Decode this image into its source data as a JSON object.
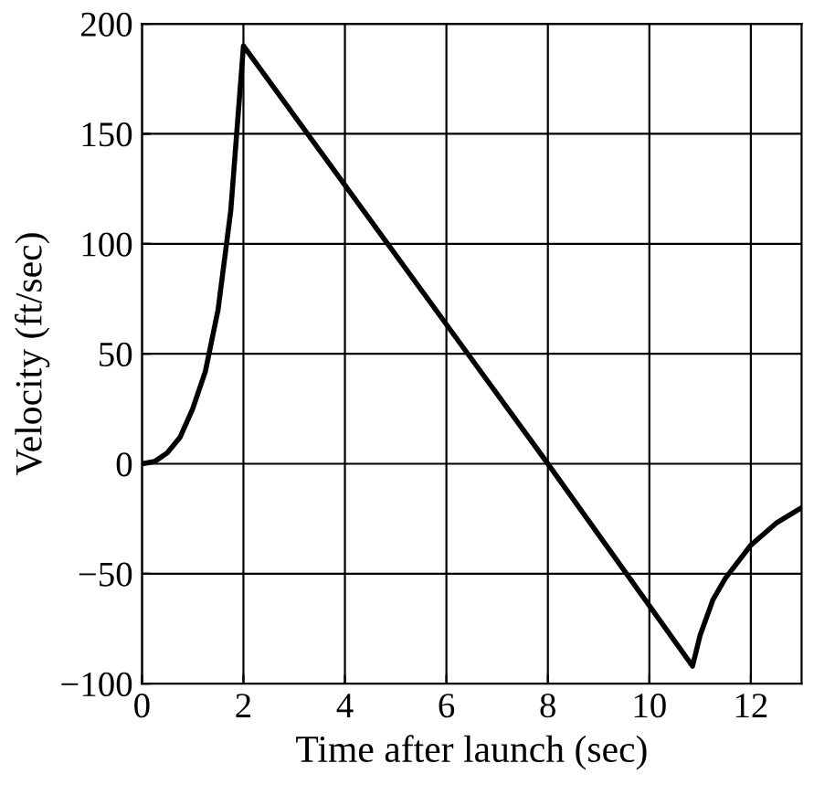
{
  "chart_data": {
    "type": "line",
    "xlabel": "Time after launch (sec)",
    "ylabel": "Velocity (ft/sec)",
    "series": [
      {
        "color": "#000000",
        "x": [
          0,
          0.25,
          0.5,
          0.75,
          1,
          1.25,
          1.5,
          1.75,
          2,
          8,
          10.85,
          11,
          11.25,
          11.5,
          12,
          12.5,
          13
        ],
        "values": [
          0,
          1,
          5,
          12,
          25,
          42,
          70,
          115,
          190,
          0,
          -92,
          -78,
          -62,
          -52,
          -37,
          -27,
          -20
        ]
      }
    ],
    "xlim": [
      0,
      13
    ],
    "xticks": [
      0,
      2,
      4,
      6,
      8,
      10,
      12
    ],
    "ylim": [
      -100,
      200
    ],
    "yticks": [
      -100,
      -50,
      0,
      50,
      100,
      150,
      200
    ],
    "grid": true,
    "marker": "none",
    "line_style": "solid"
  }
}
